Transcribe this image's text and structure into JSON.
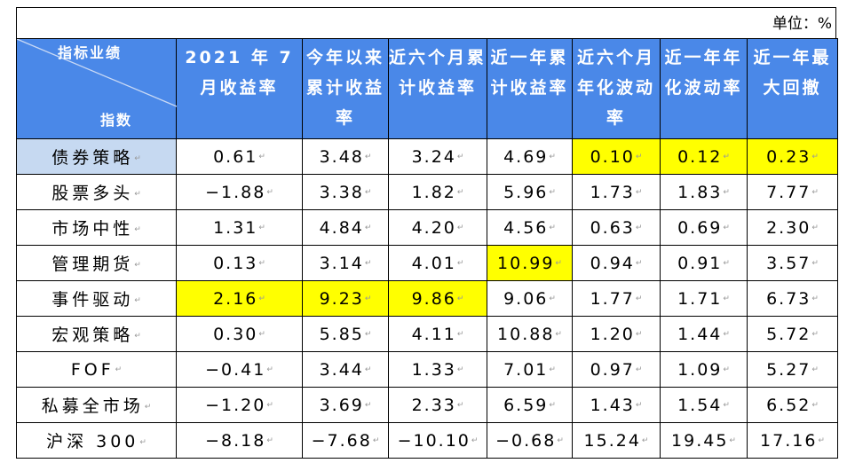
{
  "unit_label": "单位：%",
  "corner": {
    "top_label": "指标业绩",
    "bottom_label": "指数"
  },
  "columns": [
    "2021 年 7 月收益率",
    "今年以来累计收益率",
    "近六个月累计收益率",
    "近一年累计收益率",
    "近六个月年化波动率",
    "近一年年化波动率",
    "近一年最大回撤"
  ],
  "rows": [
    {
      "name": "债券策略",
      "values": [
        "0.61",
        "3.48",
        "3.24",
        "4.69",
        "0.10",
        "0.12",
        "0.23"
      ]
    },
    {
      "name": "股票多头",
      "values": [
        "−1.88",
        "3.38",
        "1.82",
        "5.96",
        "1.73",
        "1.83",
        "7.77"
      ]
    },
    {
      "name": "市场中性",
      "values": [
        "1.31",
        "4.84",
        "4.20",
        "4.56",
        "0.63",
        "0.69",
        "2.30"
      ]
    },
    {
      "name": "管理期货",
      "values": [
        "0.13",
        "3.14",
        "4.01",
        "10.99",
        "0.94",
        "0.91",
        "3.57"
      ]
    },
    {
      "name": "事件驱动",
      "values": [
        "2.16",
        "9.23",
        "9.86",
        "9.06",
        "1.77",
        "1.71",
        "6.73"
      ]
    },
    {
      "name": "宏观策略",
      "values": [
        "0.30",
        "5.85",
        "4.11",
        "10.88",
        "1.20",
        "1.44",
        "5.72"
      ]
    },
    {
      "name": "FOF",
      "values": [
        "−0.41",
        "3.44",
        "1.33",
        "7.01",
        "0.97",
        "1.09",
        "5.27"
      ]
    },
    {
      "name": "私募全市场",
      "values": [
        "−1.20",
        "3.69",
        "2.33",
        "6.59",
        "1.43",
        "1.54",
        "6.52"
      ]
    },
    {
      "name": "沪深 300",
      "values": [
        "−8.18",
        "−7.68",
        "−10.10",
        "−0.68",
        "15.24",
        "19.45",
        "17.16"
      ]
    }
  ],
  "colors": {
    "header_bg": "#4a88e8",
    "highlight": "#ffff00",
    "selected_cell": "#c6d9f1"
  }
}
